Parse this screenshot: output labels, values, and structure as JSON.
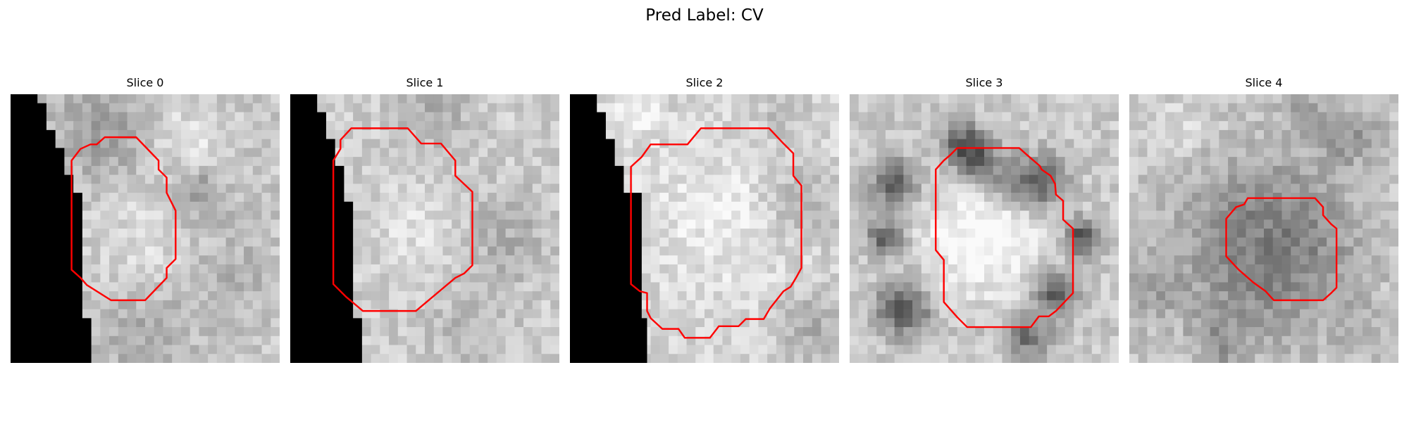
{
  "figure": {
    "title": "Pred Label: CV",
    "contour_color": "#ff0000",
    "grid_size": 30
  },
  "panels": [
    {
      "title": "Slice 0",
      "black_region": [
        [
          0,
          0
        ],
        [
          3,
          0
        ],
        [
          3,
          1
        ],
        [
          4,
          1
        ],
        [
          4,
          4
        ],
        [
          5,
          4
        ],
        [
          5,
          6
        ],
        [
          6,
          6
        ],
        [
          6,
          9
        ],
        [
          7,
          9
        ],
        [
          7,
          11
        ],
        [
          8,
          11
        ],
        [
          8,
          25
        ],
        [
          9,
          25
        ],
        [
          9,
          30
        ],
        [
          0,
          30
        ]
      ],
      "blobs": [
        {
          "cx": 10,
          "cy": 4,
          "r": 5,
          "s": -45
        },
        {
          "cx": 21,
          "cy": 11,
          "r": 3,
          "s": -45
        },
        {
          "cx": 20,
          "cy": 5,
          "r": 4,
          "s": 25
        },
        {
          "cx": 15,
          "cy": 27,
          "r": 5,
          "s": -30
        },
        {
          "cx": 25,
          "cy": 20,
          "r": 5,
          "s": -20
        },
        {
          "cx": 14,
          "cy": 16,
          "r": 5,
          "s": 20
        }
      ],
      "contour": [
        [
          10.5,
          4.8
        ],
        [
          14,
          4.8
        ],
        [
          16.5,
          7.4
        ],
        [
          16.5,
          8.4
        ],
        [
          17.4,
          9.3
        ],
        [
          17.4,
          11
        ],
        [
          18.4,
          13
        ],
        [
          18.4,
          18.4
        ],
        [
          17.4,
          19.4
        ],
        [
          17.4,
          20.5
        ],
        [
          15,
          23
        ],
        [
          11.2,
          23
        ],
        [
          8.5,
          21.3
        ],
        [
          7.8,
          20.5
        ],
        [
          6.8,
          19.6
        ],
        [
          6.8,
          7.4
        ],
        [
          7.8,
          6.1
        ],
        [
          8.9,
          5.6
        ],
        [
          9.6,
          5.6
        ]
      ],
      "base": 200,
      "seed": 11
    },
    {
      "title": "Slice 1",
      "black_region": [
        [
          0,
          0
        ],
        [
          3,
          0
        ],
        [
          3,
          2
        ],
        [
          4,
          2
        ],
        [
          4,
          5
        ],
        [
          5,
          5
        ],
        [
          5,
          8
        ],
        [
          6,
          8
        ],
        [
          6,
          12
        ],
        [
          7,
          12
        ],
        [
          7,
          25
        ],
        [
          8,
          25
        ],
        [
          8,
          30
        ],
        [
          0,
          30
        ]
      ],
      "blobs": [
        {
          "cx": 16,
          "cy": 2,
          "r": 4,
          "s": -35
        },
        {
          "cx": 24,
          "cy": 16,
          "r": 5,
          "s": -30
        },
        {
          "cx": 14,
          "cy": 15,
          "r": 5,
          "s": 20
        },
        {
          "cx": 20,
          "cy": 26,
          "r": 5,
          "s": -20
        }
      ],
      "contour": [
        [
          6.8,
          3.8
        ],
        [
          13.1,
          3.8
        ],
        [
          14.6,
          5.5
        ],
        [
          16.8,
          5.5
        ],
        [
          18.4,
          7.4
        ],
        [
          18.4,
          9.1
        ],
        [
          20.3,
          10.9
        ],
        [
          20.3,
          19.1
        ],
        [
          19.4,
          20
        ],
        [
          18.4,
          20.5
        ],
        [
          14,
          24.2
        ],
        [
          8.1,
          24.2
        ],
        [
          6.2,
          22.6
        ],
        [
          4.8,
          21.2
        ],
        [
          4.8,
          7.4
        ],
        [
          5.6,
          6.1
        ],
        [
          5.6,
          5.1
        ]
      ],
      "base": 205,
      "seed": 23
    },
    {
      "title": "Slice 2",
      "black_region": [
        [
          0,
          0
        ],
        [
          3,
          0
        ],
        [
          3,
          2
        ],
        [
          4,
          2
        ],
        [
          4,
          5
        ],
        [
          5,
          5
        ],
        [
          5,
          8
        ],
        [
          6,
          8
        ],
        [
          6,
          11
        ],
        [
          8,
          11
        ],
        [
          8,
          25
        ],
        [
          8.6,
          25
        ],
        [
          8.6,
          30
        ],
        [
          0,
          30
        ]
      ],
      "blobs": [
        {
          "cx": 7,
          "cy": 2,
          "r": 3,
          "s": 30
        },
        {
          "cx": 26,
          "cy": 12,
          "r": 4,
          "s": -35
        },
        {
          "cx": 27,
          "cy": 26,
          "r": 4,
          "s": -40
        },
        {
          "cx": 16,
          "cy": 14,
          "r": 8,
          "s": 22
        },
        {
          "cx": 24,
          "cy": 2,
          "r": 3,
          "s": -25
        }
      ],
      "contour": [
        [
          9.2,
          5.6
        ],
        [
          13.1,
          5.6
        ],
        [
          14.6,
          3.8
        ],
        [
          22.2,
          3.8
        ],
        [
          23.8,
          5.5
        ],
        [
          24.9,
          6.6
        ],
        [
          24.9,
          9.1
        ],
        [
          25.8,
          10.2
        ],
        [
          25.8,
          19.4
        ],
        [
          25.2,
          20.5
        ],
        [
          24.6,
          21.5
        ],
        [
          23.8,
          22
        ],
        [
          22.3,
          23.9
        ],
        [
          21.6,
          25.1
        ],
        [
          19.6,
          25.1
        ],
        [
          18.8,
          25.9
        ],
        [
          16.6,
          25.9
        ],
        [
          15.6,
          27.2
        ],
        [
          12.8,
          27.2
        ],
        [
          12.1,
          26.2
        ],
        [
          10.3,
          26.2
        ],
        [
          9,
          25
        ],
        [
          8.6,
          24.2
        ],
        [
          8.6,
          22.2
        ],
        [
          7.8,
          22
        ],
        [
          6.8,
          21.2
        ],
        [
          6.8,
          8.1
        ],
        [
          8,
          7
        ],
        [
          9,
          5.6
        ]
      ],
      "base": 212,
      "seed": 37
    },
    {
      "title": "Slice 3",
      "black_region": [],
      "blobs": [
        {
          "cx": 13,
          "cy": 6,
          "r": 2.5,
          "s": -130
        },
        {
          "cx": 5,
          "cy": 10,
          "r": 2.5,
          "s": -110
        },
        {
          "cx": 4,
          "cy": 16,
          "r": 2,
          "s": -100
        },
        {
          "cx": 6,
          "cy": 24,
          "r": 3,
          "s": -110
        },
        {
          "cx": 21,
          "cy": 10,
          "r": 3,
          "s": -110
        },
        {
          "cx": 26,
          "cy": 16,
          "r": 2,
          "s": -120
        },
        {
          "cx": 23,
          "cy": 22,
          "r": 2.5,
          "s": -110
        },
        {
          "cx": 20,
          "cy": 27,
          "r": 2.5,
          "s": -90
        },
        {
          "cx": 15,
          "cy": 16,
          "r": 6.5,
          "s": 60
        },
        {
          "cx": 16,
          "cy": 9,
          "r": 3,
          "s": -70
        }
      ],
      "contour": [
        [
          12,
          6
        ],
        [
          18.9,
          6
        ],
        [
          19.8,
          6.8
        ],
        [
          21.2,
          8
        ],
        [
          21.4,
          8.4
        ],
        [
          22.4,
          9.1
        ],
        [
          22.9,
          10
        ],
        [
          23,
          11.2
        ],
        [
          23.8,
          11.9
        ],
        [
          23.8,
          14
        ],
        [
          24.9,
          15
        ],
        [
          24.9,
          22.2
        ],
        [
          23,
          24.2
        ],
        [
          22.2,
          24.8
        ],
        [
          21.1,
          24.8
        ],
        [
          20.2,
          26
        ],
        [
          13.1,
          26
        ],
        [
          12,
          24.9
        ],
        [
          10.5,
          23.2
        ],
        [
          10.5,
          18.5
        ],
        [
          9.6,
          17.4
        ],
        [
          9.6,
          8.4
        ],
        [
          10.5,
          7.4
        ],
        [
          11.2,
          6.8
        ]
      ],
      "base": 200,
      "seed": 51
    },
    {
      "title": "Slice 4",
      "black_region": [],
      "blobs": [
        {
          "cx": 15.5,
          "cy": 17,
          "r": 8.5,
          "s": -90
        },
        {
          "cx": 15.5,
          "cy": 17,
          "r": 4.5,
          "s": 20
        },
        {
          "cx": 5,
          "cy": 4,
          "r": 4,
          "s": 20
        },
        {
          "cx": 25,
          "cy": 5,
          "r": 3,
          "s": -45
        },
        {
          "cx": 20,
          "cy": 2,
          "r": 3,
          "s": -35
        },
        {
          "cx": 2,
          "cy": 22,
          "r": 4,
          "s": -30
        },
        {
          "cx": 10,
          "cy": 28,
          "r": 3,
          "s": -40
        },
        {
          "cx": 27,
          "cy": 27,
          "r": 3,
          "s": -20
        }
      ],
      "contour": [
        [
          13.2,
          11.6
        ],
        [
          20.7,
          11.6
        ],
        [
          21.6,
          12.6
        ],
        [
          21.6,
          13.5
        ],
        [
          22.5,
          14.5
        ],
        [
          23.1,
          15
        ],
        [
          23.1,
          21.6
        ],
        [
          22.5,
          22.2
        ],
        [
          21.6,
          23
        ],
        [
          16.1,
          23
        ],
        [
          15.2,
          22
        ],
        [
          13.8,
          21
        ],
        [
          12.2,
          19.6
        ],
        [
          10.8,
          18.1
        ],
        [
          10.8,
          13.9
        ],
        [
          11.9,
          12.6
        ],
        [
          12.8,
          12.3
        ]
      ],
      "base": 196,
      "seed": 73
    }
  ]
}
